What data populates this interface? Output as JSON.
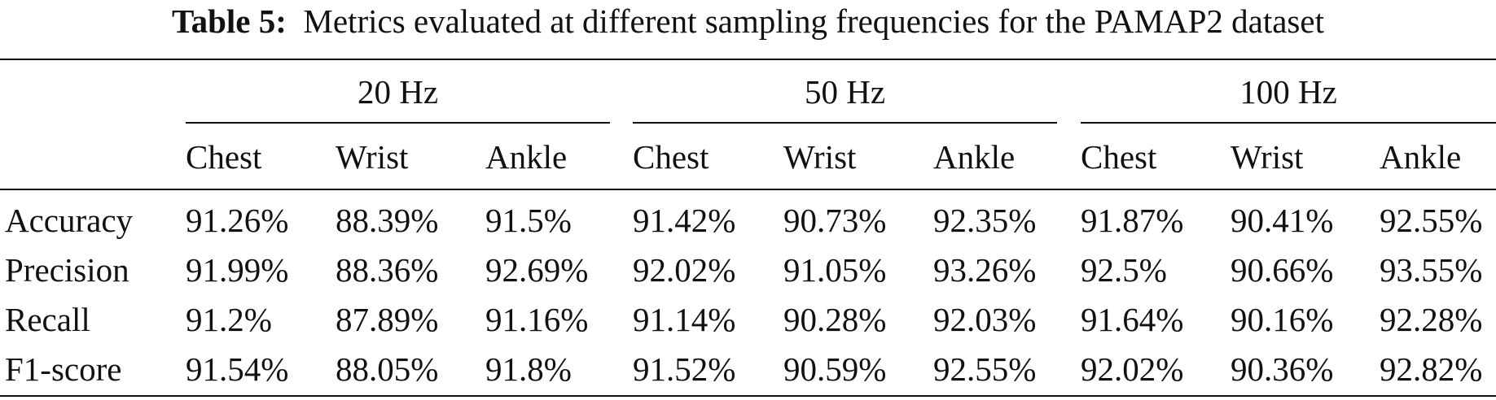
{
  "caption": {
    "label": "Table 5:",
    "text": "Metrics evaluated at different sampling frequencies for the PAMAP2 dataset"
  },
  "groups": [
    "20 Hz",
    "50 Hz",
    "100 Hz"
  ],
  "subheaders": [
    "Chest",
    "Wrist",
    "Ankle",
    "Chest",
    "Wrist",
    "Ankle",
    "Chest",
    "Wrist",
    "Ankle"
  ],
  "rows": [
    {
      "label": "Accuracy",
      "values": [
        "91.26%",
        "88.39%",
        "91.5%",
        "91.42%",
        "90.73%",
        "92.35%",
        "91.87%",
        "90.41%",
        "92.55%"
      ]
    },
    {
      "label": "Precision",
      "values": [
        "91.99%",
        "88.36%",
        "92.69%",
        "92.02%",
        "91.05%",
        "93.26%",
        "92.5%",
        "90.66%",
        "93.55%"
      ]
    },
    {
      "label": "Recall",
      "values": [
        "91.2%",
        "87.89%",
        "91.16%",
        "91.14%",
        "90.28%",
        "92.03%",
        "91.64%",
        "90.16%",
        "92.28%"
      ]
    },
    {
      "label": "F1-score",
      "values": [
        "91.54%",
        "88.05%",
        "91.8%",
        "91.52%",
        "90.59%",
        "92.55%",
        "92.02%",
        "90.36%",
        "92.82%"
      ]
    }
  ]
}
